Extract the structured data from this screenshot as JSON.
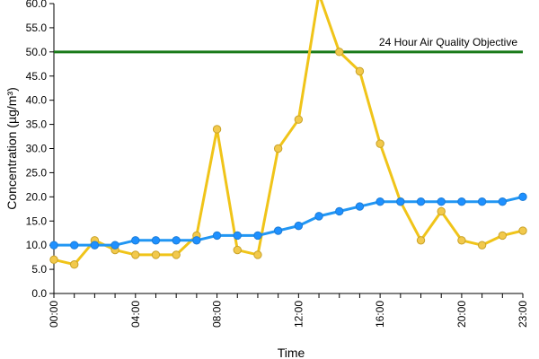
{
  "chart_data": {
    "type": "line",
    "title": "",
    "xlabel": "Time",
    "ylabel": "Concentration (µg/m³)",
    "ylim": [
      0,
      60
    ],
    "ytick_step": 5,
    "grid": false,
    "x": [
      "00:00",
      "01:00",
      "02:00",
      "03:00",
      "04:00",
      "05:00",
      "06:00",
      "07:00",
      "08:00",
      "09:00",
      "10:00",
      "11:00",
      "12:00",
      "13:00",
      "14:00",
      "15:00",
      "16:00",
      "17:00",
      "18:00",
      "19:00",
      "20:00",
      "21:00",
      "22:00",
      "23:00"
    ],
    "x_tick_labels": [
      "00:00",
      "04:00",
      "08:00",
      "12:00",
      "16:00",
      "20:00",
      "23:00"
    ],
    "y_tick_labels": [
      "0.0",
      "5.0",
      "10.0",
      "15.0",
      "20.0",
      "25.0",
      "30.0",
      "35.0",
      "40.0",
      "45.0",
      "50.0",
      "55.0",
      "60.0"
    ],
    "series": [
      {
        "color": "#f0c419",
        "marker_fill": "#f2c94c",
        "marker_stroke": "#c9a227",
        "values": [
          7,
          6,
          11,
          9,
          8,
          8,
          8,
          12,
          34,
          9,
          8,
          30,
          36,
          62,
          50,
          46,
          31,
          19,
          11,
          17,
          11,
          10,
          12,
          13
        ]
      },
      {
        "color": "#2196f3",
        "marker_fill": "#1e90ff",
        "marker_stroke": "#1c7cd6",
        "values": [
          10,
          10,
          10,
          10,
          11,
          11,
          11,
          11,
          12,
          12,
          12,
          13,
          14,
          16,
          17,
          18,
          19,
          19,
          19,
          19,
          19,
          19,
          19,
          20
        ]
      }
    ],
    "reference_line": {
      "label": "24 Hour Air Quality Objective",
      "value": 50,
      "color": "#1a7a1a"
    }
  }
}
